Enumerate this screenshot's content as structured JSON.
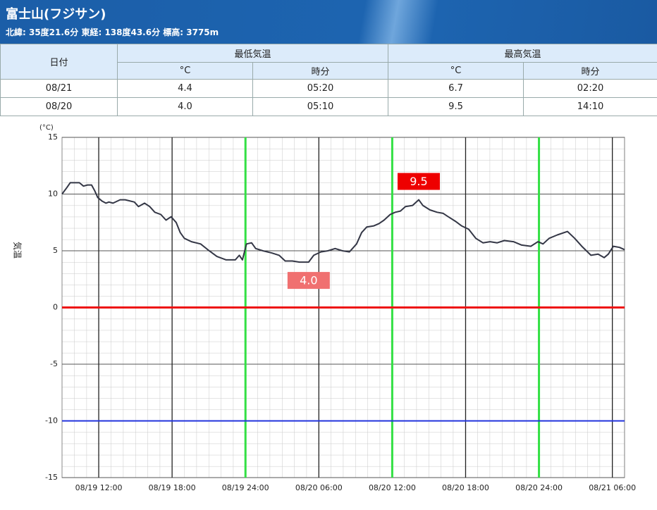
{
  "header": {
    "title": "富士山(フジサン)",
    "subtitle": "北緯: 35度21.6分 東経: 138度43.6分 標高: 3775m"
  },
  "table": {
    "columns": [
      "日付",
      "最低気温",
      "最高気温"
    ],
    "subcolumns": [
      "°C",
      "時分",
      "°C",
      "時分"
    ],
    "rows": [
      [
        "08/21",
        "4.4",
        "05:20",
        "6.7",
        "02:20"
      ],
      [
        "08/20",
        "4.0",
        "05:10",
        "9.5",
        "14:10"
      ]
    ]
  },
  "chart_data": {
    "type": "line",
    "y_label": "気温",
    "y_unit": "(°C)",
    "color": "#343746",
    "x": [
      "08/19 09:00",
      "08/19 09:25",
      "08/19 09:40",
      "08/19 10:25",
      "08/19 10:45",
      "08/19 11:05",
      "08/19 11:25",
      "08/19 11:40",
      "08/19 11:55",
      "08/19 12:15",
      "08/19 12:35",
      "08/19 12:50",
      "08/19 13:10",
      "08/19 13:45",
      "08/19 14:10",
      "08/19 14:55",
      "08/19 15:15",
      "08/19 15:45",
      "08/19 16:10",
      "08/19 16:35",
      "08/19 17:05",
      "08/19 17:30",
      "08/19 17:55",
      "08/19 18:20",
      "08/19 18:40",
      "08/19 19:00",
      "08/19 19:35",
      "08/19 20:20",
      "08/19 20:55",
      "08/19 21:40",
      "08/19 22:25",
      "08/19 23:10",
      "08/19 23:30",
      "08/19 23:45",
      "08/20 00:05",
      "08/20 00:30",
      "08/20 00:50",
      "08/20 01:25",
      "08/20 02:10",
      "08/20 02:45",
      "08/20 03:15",
      "08/20 03:50",
      "08/20 04:25",
      "08/20 05:10",
      "08/20 05:35",
      "08/20 06:10",
      "08/20 06:45",
      "08/20 07:20",
      "08/20 07:55",
      "08/20 08:30",
      "08/20 09:05",
      "08/20 09:30",
      "08/20 09:55",
      "08/20 10:30",
      "08/20 10:55",
      "08/20 11:20",
      "08/20 11:50",
      "08/20 12:15",
      "08/20 12:40",
      "08/20 13:05",
      "08/20 13:40",
      "08/20 14:10",
      "08/20 14:30",
      "08/20 15:05",
      "08/20 15:40",
      "08/20 16:10",
      "08/20 16:35",
      "08/20 17:10",
      "08/20 17:40",
      "08/20 18:15",
      "08/20 18:50",
      "08/20 19:25",
      "08/20 20:00",
      "08/20 20:35",
      "08/20 21:10",
      "08/20 21:55",
      "08/20 22:35",
      "08/20 23:20",
      "08/20 23:55",
      "08/21 00:20",
      "08/21 00:50",
      "08/21 01:30",
      "08/21 02:20",
      "08/21 02:55",
      "08/21 03:30",
      "08/21 04:15",
      "08/21 04:50",
      "08/21 05:20",
      "08/21 05:40",
      "08/21 06:05",
      "08/21 06:35",
      "08/21 07:00"
    ],
    "values": [
      10.0,
      10.6,
      11.0,
      11.0,
      10.7,
      10.8,
      10.8,
      10.3,
      9.7,
      9.4,
      9.2,
      9.3,
      9.2,
      9.5,
      9.5,
      9.3,
      8.9,
      9.2,
      8.9,
      8.4,
      8.2,
      7.7,
      8.0,
      7.5,
      6.6,
      6.1,
      5.8,
      5.6,
      5.1,
      4.5,
      4.2,
      4.2,
      4.6,
      4.2,
      5.6,
      5.7,
      5.2,
      5.0,
      4.8,
      4.6,
      4.1,
      4.1,
      4.0,
      4.0,
      4.6,
      4.9,
      5.0,
      5.2,
      5.0,
      4.9,
      5.6,
      6.6,
      7.1,
      7.2,
      7.4,
      7.7,
      8.2,
      8.4,
      8.5,
      8.9,
      9.0,
      9.5,
      9.0,
      8.6,
      8.4,
      8.3,
      8.0,
      7.6,
      7.2,
      6.9,
      6.1,
      5.7,
      5.8,
      5.7,
      5.9,
      5.8,
      5.5,
      5.4,
      5.8,
      5.6,
      6.1,
      6.4,
      6.7,
      6.1,
      5.4,
      4.6,
      4.7,
      4.4,
      4.7,
      5.4,
      5.3,
      5.1
    ],
    "xlim": [
      "08/19 09:00",
      "08/21 07:00"
    ],
    "xticks": [
      "08/19 12:00",
      "08/19 18:00",
      "08/19 24:00",
      "08/20 06:00",
      "08/20 12:00",
      "08/20 18:00",
      "08/20 24:00",
      "08/21 06:00"
    ],
    "xtick_colors": [
      "#222222",
      "#222222",
      "#33e044",
      "#222222",
      "#33e044",
      "#222222",
      "#33e044",
      "#222222"
    ],
    "ylim": [
      -15,
      15
    ],
    "yticks": [
      -15,
      -10,
      -5,
      0,
      5,
      10,
      15
    ],
    "grid": true,
    "hlines": [
      {
        "value": 0,
        "color": "#ee1111"
      },
      {
        "value": -10,
        "color": "#2233dd"
      }
    ],
    "annotations": [
      {
        "x": "08/20 14:10",
        "value": 9.5,
        "label": "9.5",
        "color": "#ee0000",
        "position": "above"
      },
      {
        "x": "08/20 05:10",
        "value": 4.0,
        "label": "4.0",
        "color": "#f07070",
        "position": "below"
      }
    ]
  }
}
